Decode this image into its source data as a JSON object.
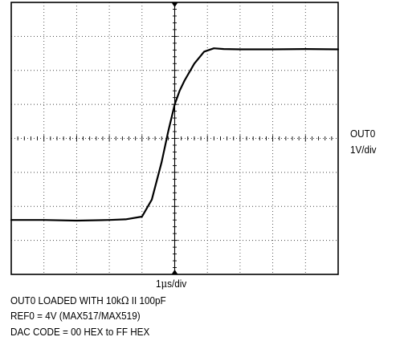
{
  "chart_data": {
    "type": "line",
    "title": "",
    "xlabel": "1μs/div",
    "ylabel": "OUT0 1V/div",
    "divisions": {
      "x": 10,
      "y": 8
    },
    "x_unit": "div",
    "y_unit": "div",
    "xlim": [
      0,
      10
    ],
    "ylim": [
      0,
      8
    ],
    "grid": true,
    "series": [
      {
        "name": "",
        "x": [
          0,
          1,
          2,
          3,
          3.5,
          4.0,
          4.3,
          4.6,
          4.8,
          5.0,
          5.15,
          5.3,
          5.6,
          5.9,
          6.2,
          6.5,
          7,
          8,
          9,
          10
        ],
        "y": [
          1.6,
          1.6,
          1.58,
          1.6,
          1.62,
          1.7,
          2.2,
          3.3,
          4.2,
          5.0,
          5.4,
          5.7,
          6.2,
          6.55,
          6.65,
          6.63,
          6.62,
          6.62,
          6.63,
          6.62
        ]
      }
    ]
  },
  "labels": {
    "xlabel_prefix": "1",
    "xlabel_mu": "μ",
    "xlabel_suffix": "s/div",
    "channel": "OUT0",
    "scale": "1V/div"
  },
  "notes": {
    "line1_prefix": "OUT0 LOADED WITH 10k",
    "line1_omega": "Ω",
    "line1_suffix": " II 100pF",
    "line2": "REF0 = 4V (MAX517/MAX519)",
    "line3": "DAC CODE = 00 HEX to FF HEX"
  }
}
